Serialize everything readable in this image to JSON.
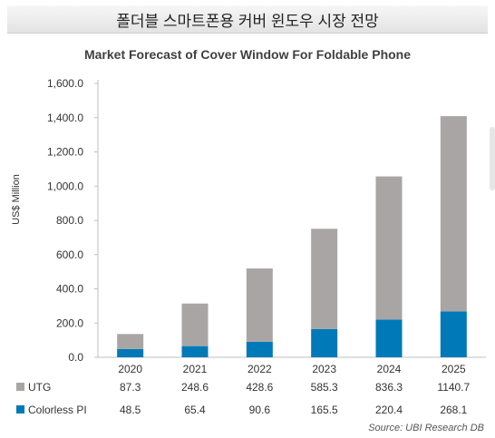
{
  "banner": {
    "title": "폴더블 스마트폰용 커버 윈도우 시장 전망"
  },
  "source": "Source: UBI Research DB",
  "colors": {
    "utg": "#aaa5a5",
    "colorless_pi": "#0079b8",
    "axis": "#bfbfbf",
    "text": "#333333"
  },
  "chart_data": {
    "type": "bar",
    "stacked": true,
    "title": "Market Forecast of Cover Window For Foldable Phone",
    "ylabel": "US$ Million",
    "xlabel": "",
    "ylim": [
      0,
      1600
    ],
    "yticks": [
      0,
      200,
      400,
      600,
      800,
      1000,
      1200,
      1400,
      1600
    ],
    "ytick_labels": [
      "0.0",
      "200.0",
      "400.0",
      "600.0",
      "800.0",
      "1,000.0",
      "1,200.0",
      "1,400.0",
      "1,600.0"
    ],
    "grid": false,
    "legend": "data-table",
    "categories": [
      "2020",
      "2021",
      "2022",
      "2023",
      "2024",
      "2025"
    ],
    "series": [
      {
        "name": "Colorless PI",
        "values": [
          48.5,
          65.4,
          90.6,
          165.5,
          220.4,
          268.1
        ],
        "value_labels": [
          "48.5",
          "65.4",
          "90.6",
          "165.5",
          "220.4",
          "268.1"
        ],
        "color": "#0079b8"
      },
      {
        "name": "UTG",
        "values": [
          87.3,
          248.6,
          428.6,
          585.3,
          836.3,
          1140.7
        ],
        "value_labels": [
          "87.3",
          "248.6",
          "428.6",
          "585.3",
          "836.3",
          "1140.7"
        ],
        "color": "#aaa5a5"
      }
    ]
  }
}
